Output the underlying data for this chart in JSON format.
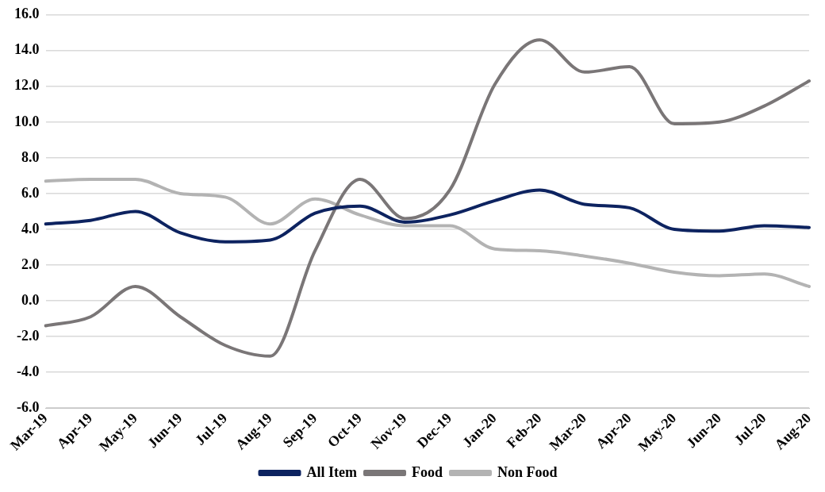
{
  "chart_data": {
    "type": "line",
    "categories": [
      "Mar-19",
      "Apr-19",
      "May-19",
      "Jun-19",
      "Jul-19",
      "Aug-19",
      "Sep-19",
      "Oct-19",
      "Nov-19",
      "Dec-19",
      "Jan-20",
      "Feb-20",
      "Mar-20",
      "Apr-20",
      "May-20",
      "Jun-20",
      "Jul-20",
      "Aug-20"
    ],
    "series": [
      {
        "name": "All Item",
        "color": "#0d2360",
        "values": [
          4.3,
          4.5,
          5.0,
          3.8,
          3.3,
          3.4,
          4.9,
          5.3,
          4.4,
          4.8,
          5.6,
          6.2,
          5.4,
          5.2,
          4.0,
          3.9,
          4.2,
          4.1
        ]
      },
      {
        "name": "Food",
        "color": "#7a7677",
        "values": [
          -1.4,
          -0.9,
          0.8,
          -0.9,
          -2.5,
          -3.1,
          2.8,
          6.8,
          4.6,
          6.2,
          12.1,
          14.6,
          12.8,
          13.1,
          9.9,
          10.0,
          10.9,
          12.3
        ]
      },
      {
        "name": "Non Food",
        "color": "#b3b3b3",
        "values": [
          6.7,
          6.8,
          6.8,
          6.0,
          5.8,
          4.3,
          5.7,
          4.8,
          4.2,
          4.2,
          2.9,
          2.8,
          2.5,
          2.1,
          1.6,
          1.4,
          1.5,
          0.8
        ]
      }
    ],
    "ylim": [
      -6,
      16
    ],
    "yticks": [
      {
        "value": -6,
        "label": "-6.0"
      },
      {
        "value": -4,
        "label": "-4.0"
      },
      {
        "value": -2,
        "label": "-2.0"
      },
      {
        "value": 0,
        "label": "0.0"
      },
      {
        "value": 2,
        "label": "2.0"
      },
      {
        "value": 4,
        "label": "4.0"
      },
      {
        "value": 6,
        "label": "6.0"
      },
      {
        "value": 8,
        "label": "8.0"
      },
      {
        "value": 10,
        "label": "10.0"
      },
      {
        "value": 12,
        "label": "12.0"
      },
      {
        "value": 14,
        "label": "14.0"
      },
      {
        "value": 16,
        "label": "16.0"
      }
    ],
    "grid": "y",
    "legend": "bottom",
    "marker": "none",
    "line_style": "solid"
  }
}
